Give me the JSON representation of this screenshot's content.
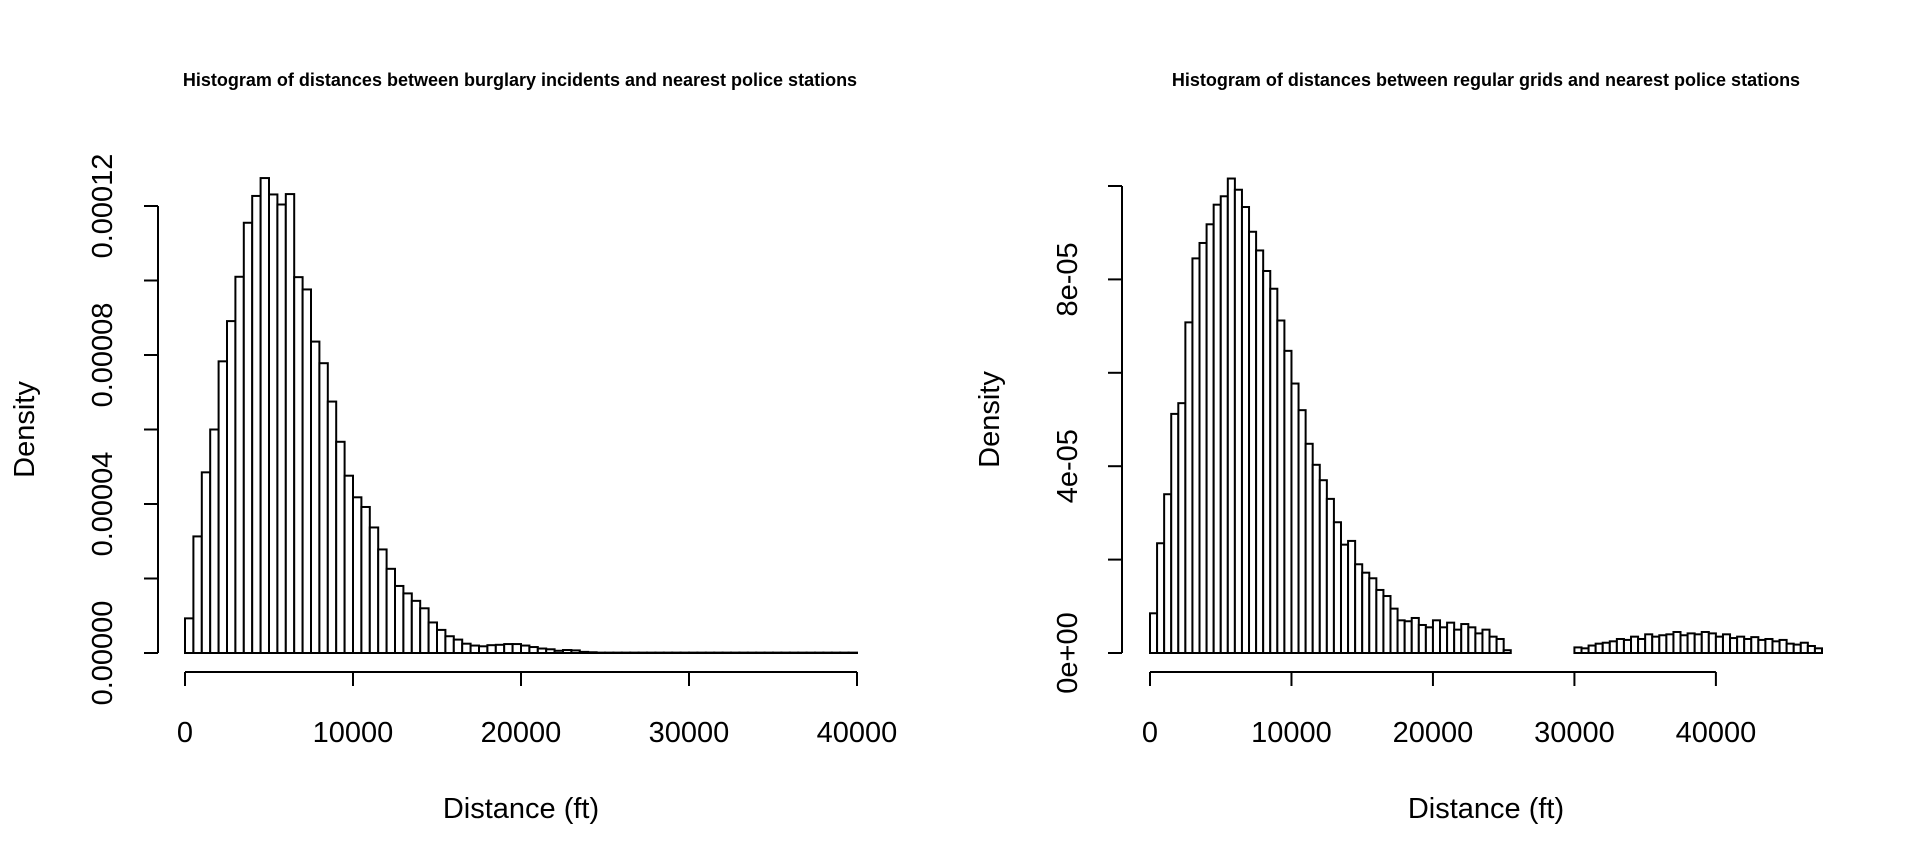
{
  "chart_data": [
    {
      "type": "bar",
      "title": "Histogram of distances between burglary incidents and nearest police stations",
      "xlabel": "Distance (ft)",
      "ylabel": "Density",
      "xlim": [
        0,
        40000
      ],
      "ylim": [
        0,
        0.00012
      ],
      "x_ticks": [
        0,
        10000,
        20000,
        30000,
        40000
      ],
      "x_tick_labels": [
        "0",
        "10000",
        "20000",
        "30000",
        "40000"
      ],
      "y_ticks": [
        0,
        2e-05,
        4e-05,
        6e-05,
        8e-05,
        0.0001,
        0.00012
      ],
      "y_tick_labels": [
        "0.00000",
        "",
        "0.00004",
        "",
        "0.00008",
        "",
        "0.00012"
      ],
      "bin_width": 500,
      "bin_start": 0,
      "values": [
        9.3e-06,
        3.13e-05,
        4.85e-05,
        6e-05,
        7.83e-05,
        8.91e-05,
        0.000101,
        0.0001155,
        0.0001227,
        0.0001275,
        0.0001231,
        0.0001204,
        0.0001232,
        0.0001009,
        9.76e-05,
        8.36e-05,
        7.78e-05,
        6.75e-05,
        5.67e-05,
        4.76e-05,
        4.18e-05,
        3.92e-05,
        3.37e-05,
        2.78e-05,
        2.26e-05,
        1.8e-05,
        1.6e-05,
        1.4e-05,
        1.2e-05,
        8.2e-06,
        6.2e-06,
        4.5e-06,
        3.6e-06,
        2.5e-06,
        2e-06,
        1.8e-06,
        2.1e-06,
        2.2e-06,
        2.4e-06,
        2.4e-06,
        2e-06,
        1.6e-06,
        1.2e-06,
        1e-06,
        6e-07,
        8e-07,
        7e-07,
        3e-07,
        2e-07,
        1e-07,
        1e-07,
        1e-07,
        1e-07,
        1e-07,
        1e-07,
        1e-07,
        1e-07,
        1e-07,
        1e-07,
        1e-07,
        1e-07,
        1e-07,
        1e-07,
        1e-07,
        1e-07,
        1e-07,
        1e-07,
        1e-07,
        1e-07,
        1e-07,
        1e-07,
        1e-07,
        1e-07,
        1e-07,
        1e-07,
        1e-07,
        1e-07,
        1e-07,
        1e-07,
        1e-07
      ]
    },
    {
      "type": "bar",
      "title": "Histogram of distances between regular grids and nearest police stations",
      "xlabel": "Distance (ft)",
      "ylabel": "Density",
      "xlim": [
        0,
        47500
      ],
      "ylim": [
        0,
        0.0001
      ],
      "x_ticks": [
        0,
        10000,
        20000,
        30000,
        40000
      ],
      "x_tick_labels": [
        "0",
        "10000",
        "20000",
        "30000",
        "40000"
      ],
      "y_ticks": [
        0,
        2e-05,
        4e-05,
        6e-05,
        8e-05,
        0.0001
      ],
      "y_tick_labels": [
        "0e+00",
        "",
        "4e-05",
        "",
        "8e-05",
        ""
      ],
      "bin_width": 500,
      "bin_start": 0,
      "values": [
        8.5e-06,
        2.35e-05,
        3.4e-05,
        5.12e-05,
        5.35e-05,
        7.08e-05,
        8.45e-05,
        8.78e-05,
        9.18e-05,
        9.6e-05,
        9.78e-05,
        0.0001016,
        9.92e-05,
        9.55e-05,
        9.02e-05,
        8.62e-05,
        8.18e-05,
        7.8e-05,
        7.12e-05,
        6.47e-05,
        5.77e-05,
        5.2e-05,
        4.48e-05,
        4.03e-05,
        3.7e-05,
        3.3e-05,
        2.8e-05,
        2.32e-05,
        2.4e-05,
        1.9e-05,
        1.72e-05,
        1.6e-05,
        1.35e-05,
        1.22e-05,
        9.5e-06,
        7e-06,
        6.8e-06,
        7.5e-06,
        6e-06,
        5.5e-06,
        7e-06,
        5.5e-06,
        6.5e-06,
        5e-06,
        6.2e-06,
        5.5e-06,
        4.2e-06,
        5e-06,
        3.5e-06,
        3e-06,
        6e-07,
        0.0,
        0.0,
        0.0,
        0.0,
        0.0,
        0.0,
        0.0,
        0.0,
        0.0,
        1.2e-06,
        1e-06,
        1.6e-06,
        2e-06,
        2.2e-06,
        2.5e-06,
        3e-06,
        2.8e-06,
        3.5e-06,
        3e-06,
        4e-06,
        3.5e-06,
        3.8e-06,
        4e-06,
        4.5e-06,
        3.8e-06,
        4.2e-06,
        4e-06,
        4.5e-06,
        4.2e-06,
        3.5e-06,
        4e-06,
        3.2e-06,
        3.5e-06,
        3e-06,
        3.4e-06,
        2.8e-06,
        3e-06,
        2.5e-06,
        2.8e-06,
        2e-06,
        1.8e-06,
        2.2e-06,
        1.5e-06,
        1e-06
      ]
    }
  ]
}
